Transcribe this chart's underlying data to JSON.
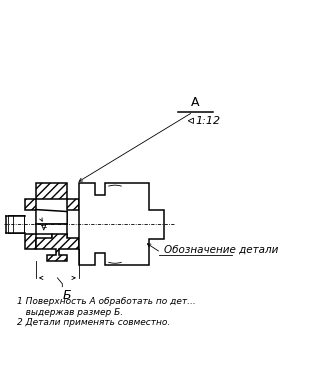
{
  "bg_color": "#ffffff",
  "lc": "#000000",
  "title_A": "А",
  "taper_label": "1:12",
  "label_detail": "Обозначение детали",
  "label_B": "Б",
  "note_line1": "1 Поверхность А обработать по дет...",
  "note_line2": "   выдержав размер Б.",
  "note_line3": "2 Детали применять совместно.",
  "lw": 1.1,
  "tlw": 0.6
}
